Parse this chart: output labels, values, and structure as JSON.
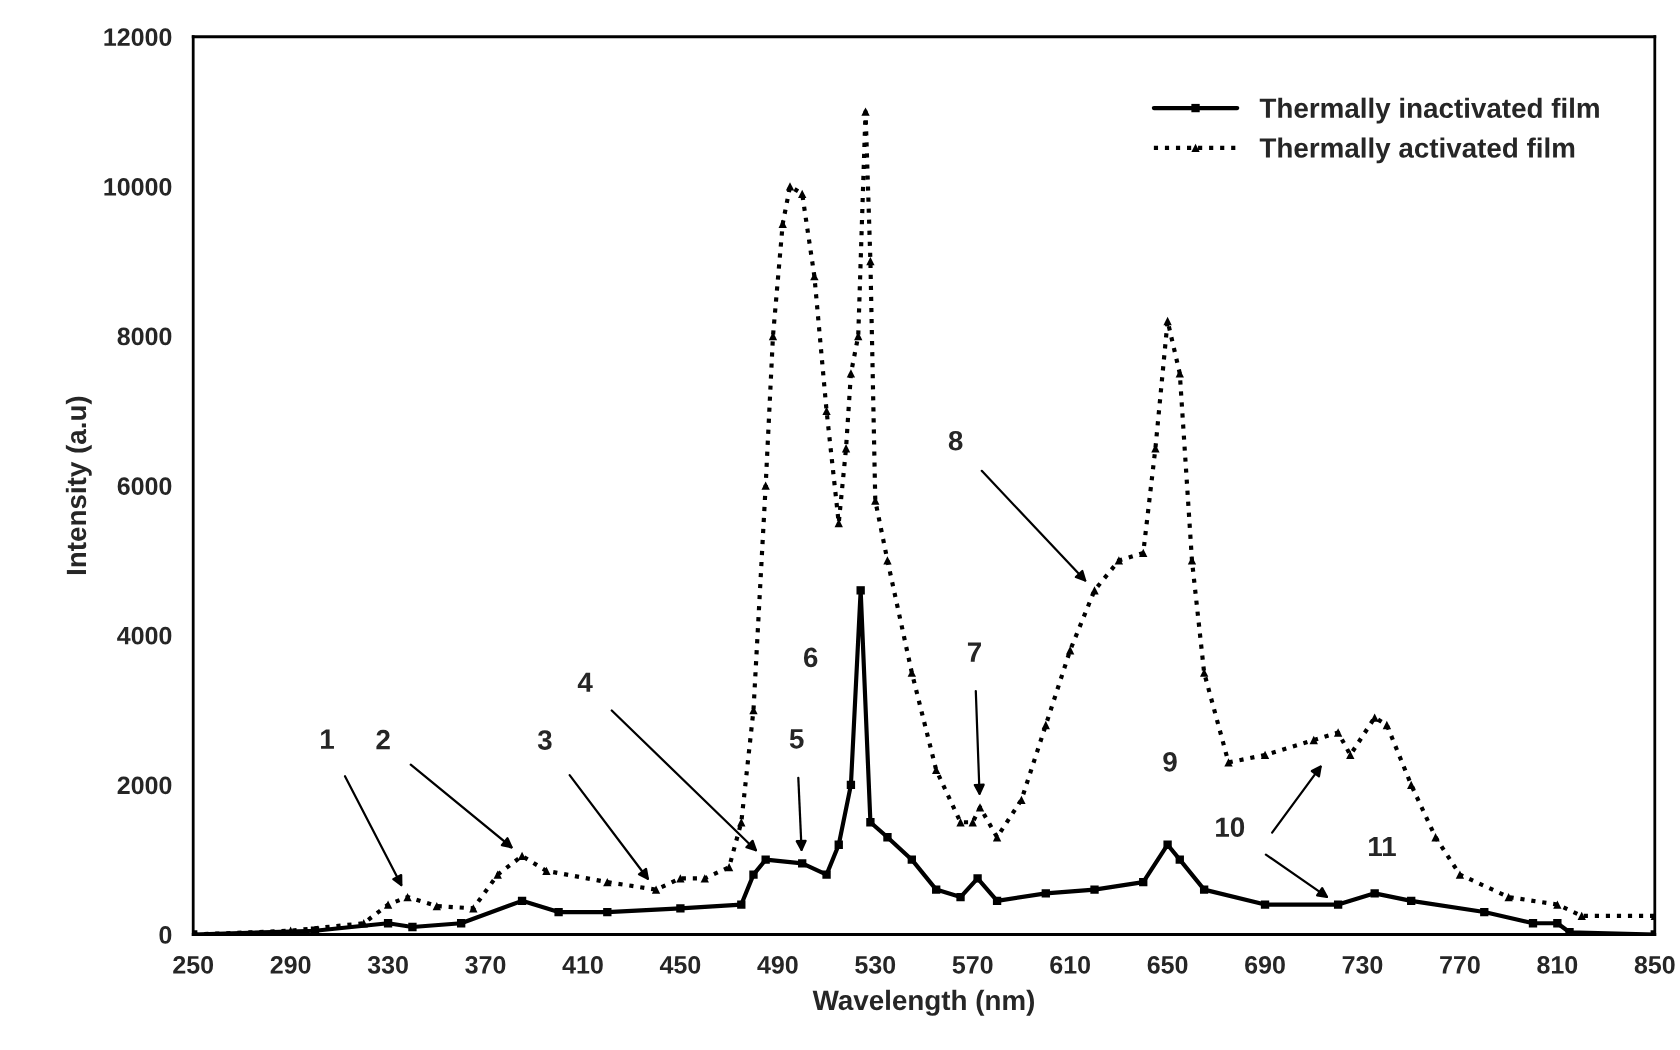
{
  "chart_data": {
    "type": "line",
    "xlabel": "Wavelength (nm)",
    "ylabel": "Intensity (a.u)",
    "xlim": [
      250,
      850
    ],
    "xticks": [
      250,
      290,
      330,
      370,
      410,
      450,
      490,
      530,
      570,
      610,
      650,
      690,
      730,
      770,
      810,
      850
    ],
    "ylim": [
      0,
      12000
    ],
    "yticks": [
      0,
      2000,
      4000,
      6000,
      8000,
      10000,
      12000
    ],
    "grid": false,
    "legend": "top right",
    "series": [
      {
        "name": "Thermally inactivated film",
        "color": "#000000",
        "marker": "square",
        "line_style": "solid",
        "x": [
          250,
          300,
          330,
          340,
          360,
          385,
          400,
          420,
          450,
          475,
          480,
          485,
          500,
          510,
          515,
          520,
          524,
          528,
          535,
          545,
          555,
          565,
          572,
          580,
          600,
          620,
          640,
          650,
          655,
          665,
          690,
          720,
          735,
          750,
          780,
          800,
          810,
          815,
          850
        ],
        "values": [
          0,
          50,
          150,
          100,
          150,
          450,
          300,
          300,
          350,
          400,
          800,
          1000,
          950,
          800,
          1200,
          2000,
          4600,
          1500,
          1300,
          1000,
          600,
          500,
          750,
          450,
          550,
          600,
          700,
          1200,
          1000,
          600,
          400,
          400,
          550,
          450,
          300,
          150,
          150,
          30,
          0
        ]
      },
      {
        "name": "Thermally activated film",
        "color": "#000000",
        "marker": "triangle",
        "line_style": "dotted",
        "x": [
          250,
          290,
          320,
          330,
          338,
          350,
          365,
          375,
          385,
          395,
          420,
          440,
          450,
          460,
          470,
          475,
          480,
          485,
          488,
          492,
          495,
          500,
          505,
          510,
          515,
          518,
          520,
          523,
          526,
          528,
          530,
          535,
          545,
          555,
          565,
          570,
          573,
          580,
          590,
          600,
          610,
          620,
          630,
          640,
          645,
          650,
          655,
          660,
          665,
          675,
          690,
          710,
          720,
          725,
          735,
          740,
          750,
          760,
          770,
          790,
          810,
          820,
          850
        ],
        "values": [
          0,
          50,
          150,
          400,
          500,
          380,
          350,
          800,
          1050,
          850,
          700,
          600,
          750,
          750,
          900,
          1500,
          3000,
          6000,
          8000,
          9500,
          10000,
          9900,
          8800,
          7000,
          5500,
          6500,
          7500,
          8000,
          11000,
          9000,
          5800,
          5000,
          3500,
          2200,
          1500,
          1500,
          1700,
          1300,
          1800,
          2800,
          3800,
          4600,
          5000,
          5100,
          6500,
          8200,
          7500,
          5000,
          3500,
          2300,
          2400,
          2600,
          2700,
          2400,
          2900,
          2800,
          2000,
          1300,
          800,
          500,
          400,
          250,
          250
        ]
      }
    ],
    "annotations": [
      {
        "text": "1",
        "x": 338,
        "y": 500
      },
      {
        "text": "2",
        "x": 385,
        "y": 1050
      },
      {
        "text": "3",
        "x": 440,
        "y": 600
      },
      {
        "text": "4",
        "x": 485,
        "y": 1000
      },
      {
        "text": "5",
        "x": 500,
        "y": 950
      },
      {
        "text": "6",
        "x": 524,
        "y": 4600
      },
      {
        "text": "7",
        "x": 573,
        "y": 1700
      },
      {
        "text": "8",
        "x": 620,
        "y": 4600
      },
      {
        "text": "9",
        "x": 651,
        "y": 1200
      },
      {
        "text": "10",
        "x": 720,
        "y": 400
      },
      {
        "text": "11",
        "x": 738,
        "y": 550
      }
    ]
  }
}
